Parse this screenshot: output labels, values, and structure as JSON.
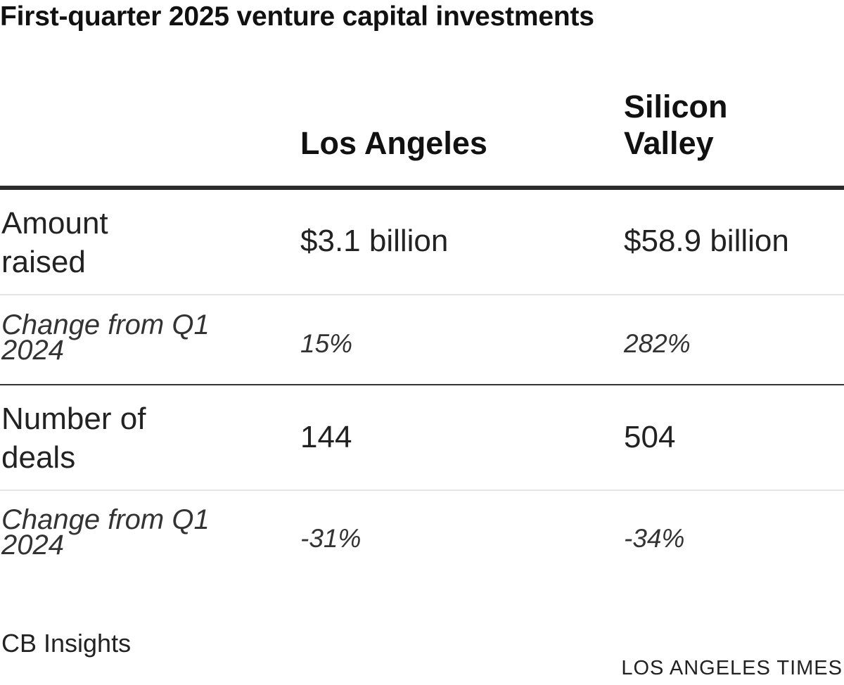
{
  "chart_data": {
    "type": "table",
    "title": "First-quarter 2025 venture capital investments",
    "columns": [
      "Los Angeles",
      "Silicon Valley"
    ],
    "rows": [
      {
        "label": "Amount raised",
        "values": [
          "$3.1 billion",
          "$58.9 billion"
        ]
      },
      {
        "label": "Change from Q1 2024",
        "values": [
          "15%",
          "282%"
        ]
      },
      {
        "label": "Number of deals",
        "values": [
          "144",
          "504"
        ]
      },
      {
        "label": "Change from Q1 2024",
        "values": [
          "-31%",
          "-34%"
        ]
      }
    ],
    "source": "CB Insights",
    "credit": "LOS ANGELES TIMES"
  }
}
